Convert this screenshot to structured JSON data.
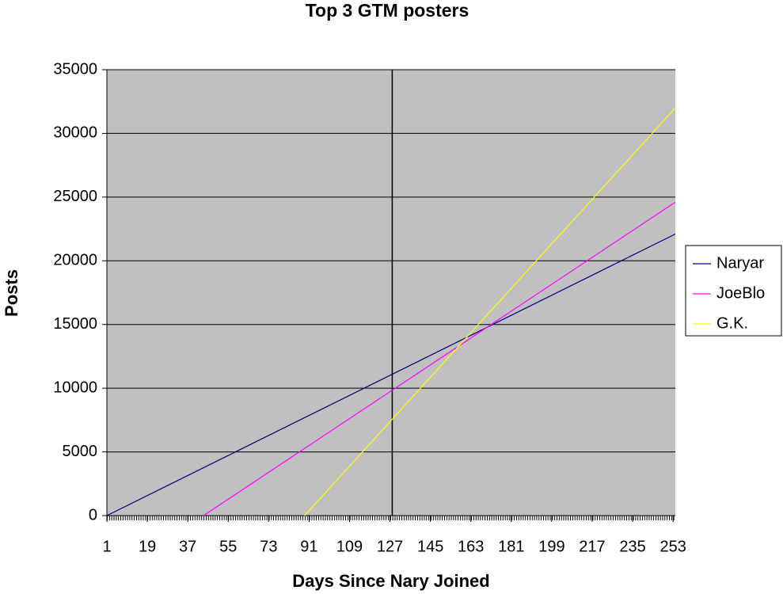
{
  "chart_data": {
    "type": "line",
    "title": "Top 3 GTM posters",
    "xlabel": "Days Since Nary Joined",
    "ylabel": "Posts",
    "xlim": [
      1,
      254
    ],
    "ylim": [
      0,
      35000
    ],
    "xticks": [
      1,
      19,
      37,
      55,
      73,
      91,
      109,
      127,
      145,
      163,
      181,
      199,
      217,
      235,
      253
    ],
    "yticks": [
      0,
      5000,
      10000,
      15000,
      20000,
      25000,
      30000,
      35000
    ],
    "vline": 128,
    "grid": true,
    "legend": "right",
    "series": [
      {
        "name": "Naryar",
        "color": "#000080",
        "x": [
          1,
          254
        ],
        "values": [
          0,
          22100
        ]
      },
      {
        "name": "JoeBlo",
        "color": "#ff00ff",
        "x": [
          44,
          254
        ],
        "values": [
          0,
          24600
        ]
      },
      {
        "name": "G.K.",
        "color": "#ffff00",
        "x": [
          89,
          254
        ],
        "values": [
          0,
          32000
        ]
      }
    ]
  }
}
